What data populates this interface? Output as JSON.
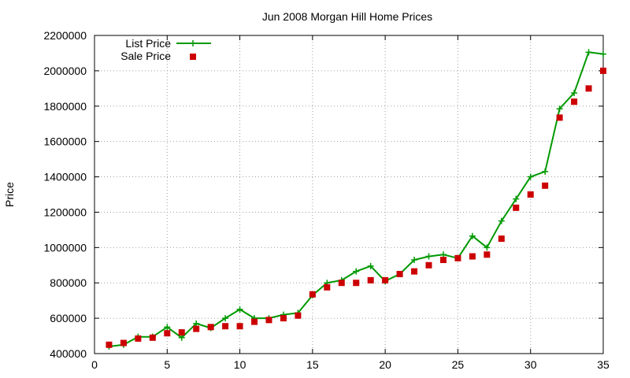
{
  "chart_data": {
    "type": "line",
    "title": "Jun 2008 Morgan Hill Home Prices",
    "xlabel": "",
    "ylabel": "Price",
    "xlim": [
      0,
      35
    ],
    "ylim": [
      400000,
      2200000
    ],
    "x_ticks": [
      0,
      5,
      10,
      15,
      20,
      25,
      30,
      35
    ],
    "y_ticks": [
      400000,
      600000,
      800000,
      1000000,
      1200000,
      1400000,
      1600000,
      1800000,
      2000000,
      2200000
    ],
    "x_tick_labels": [
      "0",
      "5",
      "10",
      "15",
      "20",
      "25",
      "30",
      "35"
    ],
    "y_tick_labels": [
      "400000",
      "600000",
      "800000",
      "1000000",
      "1200000",
      "1400000",
      "1600000",
      "1800000",
      "2000000",
      "2200000"
    ],
    "grid": true,
    "legend_position": "top-left",
    "series": [
      {
        "name": "List Price",
        "style": "line-plus",
        "color": "#009900",
        "x": [
          1,
          2,
          3,
          4,
          5,
          6,
          7,
          8,
          9,
          10,
          11,
          12,
          13,
          14,
          15,
          16,
          17,
          18,
          19,
          20,
          21,
          22,
          23,
          24,
          25,
          26,
          27,
          28,
          29,
          30,
          31,
          32,
          33,
          34,
          35
        ],
        "y": [
          440000,
          450000,
          495000,
          495000,
          550000,
          490000,
          570000,
          545000,
          600000,
          650000,
          600000,
          600000,
          620000,
          630000,
          730000,
          800000,
          815000,
          865000,
          895000,
          810000,
          850000,
          930000,
          950000,
          960000,
          940000,
          1065000,
          1000000,
          1150000,
          1275000,
          1400000,
          1430000,
          1785000,
          1875000,
          2105000,
          2095000
        ]
      },
      {
        "name": "Sale Price",
        "style": "square-marker",
        "color": "#cc0000",
        "x": [
          1,
          2,
          3,
          4,
          5,
          6,
          7,
          8,
          9,
          10,
          11,
          12,
          13,
          14,
          15,
          16,
          17,
          18,
          19,
          20,
          21,
          22,
          23,
          24,
          25,
          26,
          27,
          28,
          29,
          30,
          31,
          32,
          33,
          34,
          35
        ],
        "y": [
          450000,
          460000,
          485000,
          490000,
          515000,
          520000,
          540000,
          550000,
          555000,
          555000,
          580000,
          590000,
          600000,
          615000,
          735000,
          775000,
          800000,
          800000,
          815000,
          815000,
          850000,
          865000,
          900000,
          930000,
          940000,
          950000,
          960000,
          1050000,
          1225000,
          1300000,
          1350000,
          1735000,
          1825000,
          1900000,
          2000000
        ]
      }
    ]
  }
}
